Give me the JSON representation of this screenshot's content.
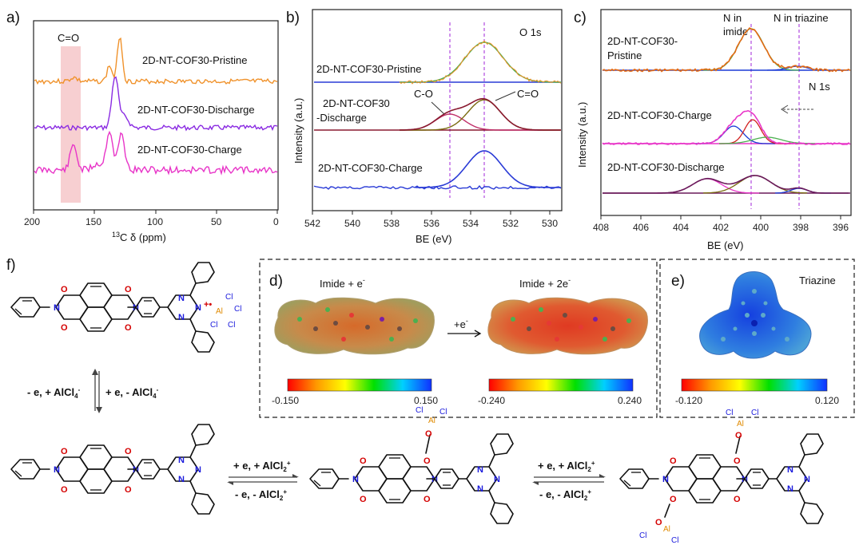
{
  "panels": {
    "a": {
      "letter": "a)",
      "annotation": "C=O",
      "traces": [
        {
          "name": "2D-NT-COF30-Pristine",
          "color": "#f0922b"
        },
        {
          "name": "2D-NT-COF30-Discharge",
          "color": "#8a2be2"
        },
        {
          "name": "2D-NT-COF30-Charge",
          "color": "#e835c8"
        }
      ],
      "xlabel_prefix": "13",
      "xlabel": "C δ (ppm)",
      "xticks": [
        "200",
        "150",
        "100",
        "50",
        "0"
      ]
    },
    "b": {
      "letter": "b)",
      "core": "O 1s",
      "ylabel": "Intensity (a.u.)",
      "xlabel": "BE (eV)",
      "xticks": [
        "542",
        "540",
        "538",
        "536",
        "534",
        "532",
        "530"
      ],
      "traces": [
        {
          "name": "2D-NT-COF30-Pristine"
        },
        {
          "name_line1": "2D-NT-COF30",
          "name_line2": "-Discharge"
        },
        {
          "name": "2D-NT-COF30-Charge"
        }
      ],
      "peak_labels": [
        "C-O",
        "C=O"
      ],
      "colors": {
        "fit": "#2a3bd6",
        "raw": "#f0922b",
        "sum": "#8a1a30",
        "co": "#c0306a",
        "cdo": "#7a6b10"
      }
    },
    "c": {
      "letter": "c)",
      "core": "N 1s",
      "ylabel": "Intensity (a.u.)",
      "xlabel": "BE (eV)",
      "xticks": [
        "408",
        "406",
        "404",
        "402",
        "400",
        "398",
        "396"
      ],
      "peak_labels": {
        "imide_1": "N in",
        "imide_2": "imide",
        "triazine": "N in triazine"
      },
      "traces": [
        {
          "name_line1": "2D-NT-COF30-",
          "name_line2": "Pristine"
        },
        {
          "name": "2D-NT-COF30-Charge"
        },
        {
          "name": "2D-NT-COF30-Discharge"
        }
      ]
    },
    "d": {
      "letter": "d)",
      "left_title": "Imide + e",
      "left_sup": "-",
      "right_title": "Imide + 2e",
      "right_sup": "-",
      "arrow_label": "+e",
      "arrow_sup": "-",
      "left_scale": [
        "-0.150",
        "0.150"
      ],
      "right_scale": [
        "-0.240",
        "0.240"
      ]
    },
    "e": {
      "letter": "e)",
      "title": "Triazine",
      "scale": [
        "-0.120",
        "0.120"
      ]
    },
    "f": {
      "letter": "f)",
      "vertical_left": "- e, + AlCl",
      "vertical_left_sub": "4",
      "vertical_left_sup": "-",
      "vertical_right": "+ e, - AlCl",
      "vertical_right_sub": "4",
      "vertical_right_sup": "-",
      "step1_top": "+ e, + AlCl",
      "step1_top_sub": "2",
      "step1_top_sup": "+",
      "step1_bottom": "- e, - AlCl",
      "step1_bottom_sub": "2",
      "step1_bottom_sup": "+",
      "step2_top": "+ e, + AlCl",
      "step2_top_sub": "2",
      "step2_top_sup": "+",
      "step2_bottom": "- e, - AlCl",
      "step2_bottom_sub": "2",
      "step2_bottom_sup": "+",
      "atoms": {
        "O": "O",
        "N": "N",
        "Cl": "Cl",
        "Al": "Al",
        "radical": "+•"
      }
    }
  }
}
